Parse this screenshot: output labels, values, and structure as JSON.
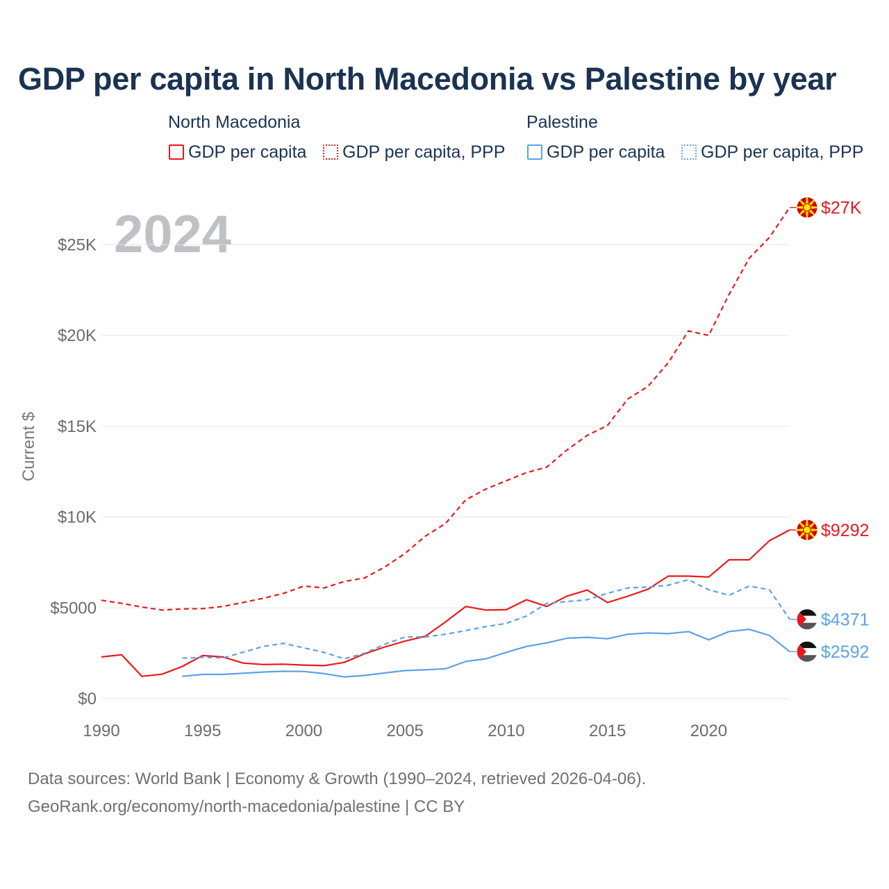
{
  "title": "GDP per capita in North Macedonia vs Palestine by year",
  "year_label": "2024",
  "legend": {
    "groups": [
      {
        "country": "North Macedonia",
        "color": "#e8191c",
        "items": [
          "GDP per capita",
          "GDP per capita, PPP"
        ]
      },
      {
        "country": "Palestine",
        "color": "#5aa2e6",
        "items": [
          "GDP per capita",
          "GDP per capita, PPP"
        ]
      }
    ]
  },
  "footer": {
    "line1": "Data sources: World Bank | Economy & Growth (1990–2024, retrieved 2026-04-06).",
    "line2": "GeoRank.org/economy/north-macedonia/palestine | CC BY"
  },
  "colors": {
    "north_macedonia": "#e8191c",
    "palestine": "#5aa2e6",
    "grid": "#e6e6e6"
  },
  "chart_data": {
    "type": "line",
    "xlabel": "",
    "ylabel": "Current $",
    "xlim": [
      1990,
      2024
    ],
    "ylim": [
      0,
      27000
    ],
    "x_ticks": [
      1990,
      1995,
      2000,
      2005,
      2010,
      2015,
      2020
    ],
    "x_tick_labels": [
      "1990",
      "1995",
      "2000",
      "2005",
      "2010",
      "2015",
      "2020"
    ],
    "y_ticks": [
      0,
      5000,
      10000,
      15000,
      20000,
      25000
    ],
    "y_tick_labels": [
      "$0",
      "$5000",
      "$10K",
      "$15K",
      "$20K",
      "$25K"
    ],
    "grid": true,
    "series": [
      {
        "name": "North Macedonia GDP per capita, PPP",
        "country": "North Macedonia",
        "style": "dashed",
        "color": "#e8191c",
        "end_label": "$27K",
        "flag": "north-macedonia",
        "x": [
          1990,
          1991,
          1992,
          1993,
          1994,
          1995,
          1996,
          1997,
          1998,
          1999,
          2000,
          2001,
          2002,
          2003,
          2004,
          2005,
          2006,
          2007,
          2008,
          2009,
          2010,
          2011,
          2012,
          2013,
          2014,
          2015,
          2016,
          2017,
          2018,
          2019,
          2020,
          2021,
          2022,
          2023,
          2024
        ],
        "values": [
          5420,
          5250,
          5050,
          4880,
          4940,
          4960,
          5080,
          5300,
          5530,
          5800,
          6200,
          6100,
          6450,
          6650,
          7250,
          8000,
          8950,
          9650,
          10950,
          11550,
          12000,
          12450,
          12750,
          13700,
          14500,
          15050,
          16500,
          17200,
          18500,
          20250,
          20000,
          22250,
          24250,
          25400,
          27050
        ]
      },
      {
        "name": "North Macedonia GDP per capita",
        "country": "North Macedonia",
        "style": "solid",
        "color": "#e8191c",
        "end_label": "$9292",
        "flag": "north-macedonia",
        "x": [
          1990,
          1991,
          1992,
          1993,
          1994,
          1995,
          1996,
          1997,
          1998,
          1999,
          2000,
          2001,
          2002,
          2003,
          2004,
          2005,
          2006,
          2007,
          2008,
          2009,
          2010,
          2011,
          2012,
          2013,
          2014,
          2015,
          2016,
          2017,
          2018,
          2019,
          2020,
          2021,
          2022,
          2023,
          2024
        ],
        "values": [
          2300,
          2420,
          1230,
          1350,
          1780,
          2380,
          2300,
          1960,
          1880,
          1900,
          1850,
          1820,
          2000,
          2470,
          2850,
          3170,
          3440,
          4230,
          5080,
          4880,
          4900,
          5450,
          5080,
          5650,
          5980,
          5300,
          5640,
          6030,
          6750,
          6750,
          6700,
          7650,
          7650,
          8700,
          9292
        ]
      },
      {
        "name": "Palestine GDP per capita, PPP",
        "country": "Palestine",
        "style": "dashed",
        "color": "#5aa2e6",
        "end_label": "$4371",
        "flag": "palestine",
        "x": [
          1994,
          1995,
          1996,
          1997,
          1998,
          1999,
          2000,
          2001,
          2002,
          2003,
          2004,
          2005,
          2006,
          2007,
          2008,
          2009,
          2010,
          2011,
          2012,
          2013,
          2014,
          2015,
          2016,
          2017,
          2018,
          2019,
          2020,
          2021,
          2022,
          2023,
          2024
        ],
        "values": [
          2230,
          2280,
          2250,
          2560,
          2880,
          3050,
          2800,
          2550,
          2200,
          2500,
          3000,
          3400,
          3400,
          3550,
          3750,
          3970,
          4150,
          4550,
          5250,
          5350,
          5450,
          5800,
          6100,
          6150,
          6250,
          6550,
          6000,
          5700,
          6200,
          6000,
          4371
        ]
      },
      {
        "name": "Palestine GDP per capita",
        "country": "Palestine",
        "style": "solid",
        "color": "#5aa2e6",
        "end_label": "$2592",
        "flag": "palestine",
        "x": [
          1994,
          1995,
          1996,
          1997,
          1998,
          1999,
          2000,
          2001,
          2002,
          2003,
          2004,
          2005,
          2006,
          2007,
          2008,
          2009,
          2010,
          2011,
          2012,
          2013,
          2014,
          2015,
          2016,
          2017,
          2018,
          2019,
          2020,
          2021,
          2022,
          2023,
          2024
        ],
        "values": [
          1230,
          1340,
          1340,
          1400,
          1470,
          1510,
          1500,
          1380,
          1200,
          1280,
          1420,
          1550,
          1590,
          1650,
          2050,
          2200,
          2550,
          2880,
          3070,
          3330,
          3380,
          3300,
          3550,
          3620,
          3580,
          3700,
          3240,
          3700,
          3820,
          3480,
          2592
        ]
      }
    ]
  }
}
